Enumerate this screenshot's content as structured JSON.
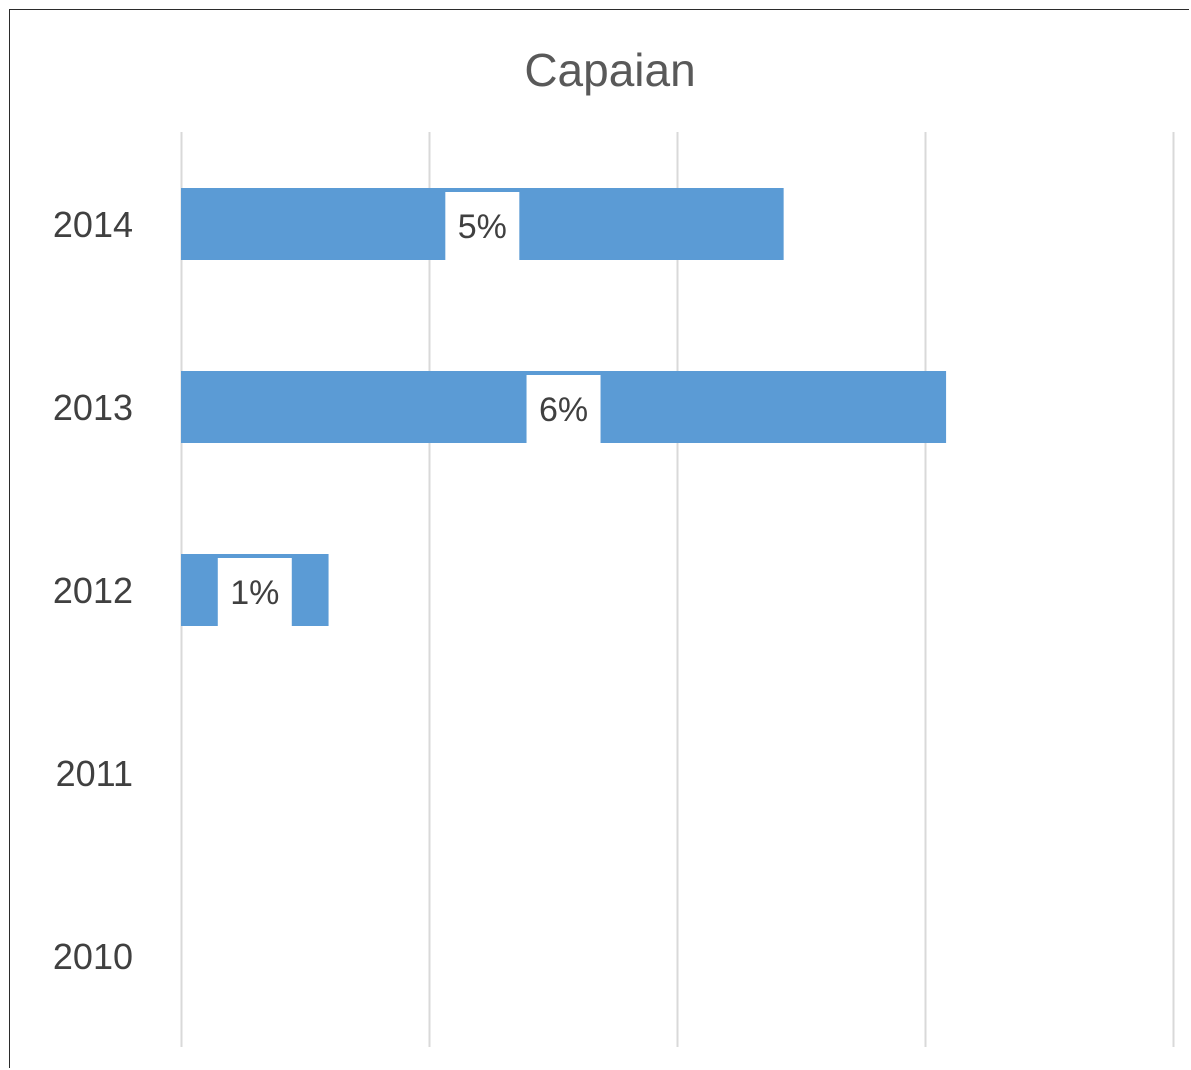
{
  "chart_data": {
    "type": "bar",
    "orientation": "horizontal",
    "title": "Capaian",
    "categories": [
      "2014",
      "2013",
      "2012",
      "2011",
      "2010"
    ],
    "values": [
      0.0486,
      0.0617,
      0.0119,
      null,
      null
    ],
    "data_labels": [
      "5%",
      "6%",
      "1%",
      "",
      ""
    ],
    "xlim": [
      0,
      0.08
    ],
    "x_gridlines": [
      0,
      0.02,
      0.04,
      0.06,
      0.08
    ],
    "grid": true,
    "legend": "none",
    "bar_color": "#5b9bd5",
    "gridline_color": "#d9d9d9"
  }
}
